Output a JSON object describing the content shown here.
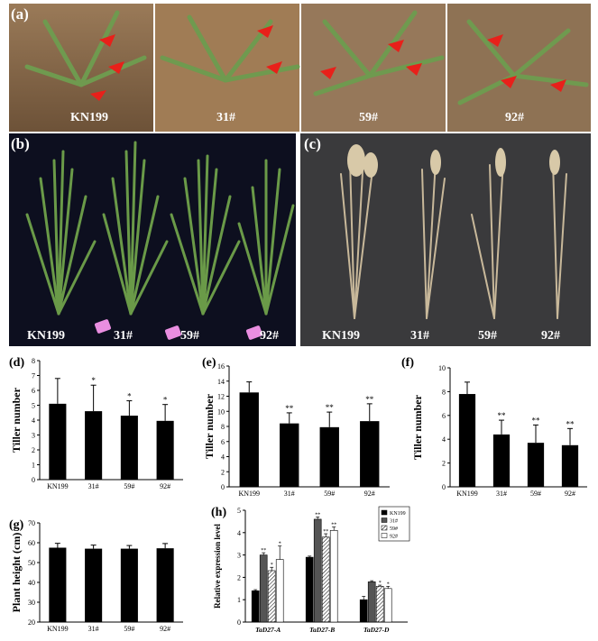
{
  "panels": {
    "a": {
      "letter": "(a)",
      "labels": [
        "KN199",
        "31#",
        "59#",
        "92#"
      ]
    },
    "b": {
      "letter": "(b)",
      "labels": [
        "KN199",
        "31#",
        "59#",
        "92#"
      ]
    },
    "c": {
      "letter": "(c)",
      "labels": [
        "KN199",
        "31#",
        "59#",
        "92#"
      ]
    }
  },
  "chart_data": [
    {
      "id": "d",
      "letter": "(d)",
      "type": "bar",
      "categories": [
        "KN199",
        "31#",
        "59#",
        "92#"
      ],
      "values": [
        5.1,
        4.6,
        4.3,
        3.95
      ],
      "errors": [
        1.7,
        1.75,
        1.0,
        1.1
      ],
      "sig": [
        "",
        "*",
        "*",
        "*"
      ],
      "ylabel": "Tiller number",
      "ylim": [
        0,
        8
      ],
      "yticks": [
        0,
        1,
        2,
        3,
        4,
        5,
        6,
        7,
        8
      ]
    },
    {
      "id": "e",
      "letter": "(e)",
      "type": "bar",
      "categories": [
        "KN199",
        "31#",
        "59#",
        "92#"
      ],
      "values": [
        12.5,
        8.4,
        7.9,
        8.7
      ],
      "errors": [
        1.4,
        1.4,
        2.0,
        2.3
      ],
      "sig": [
        "",
        "**",
        "**",
        "**"
      ],
      "ylabel": "Tiller number",
      "ylim": [
        0,
        16
      ],
      "yticks": [
        0,
        2,
        4,
        6,
        8,
        10,
        12,
        14,
        16
      ]
    },
    {
      "id": "f",
      "letter": "(f)",
      "type": "bar",
      "categories": [
        "KN199",
        "31#",
        "59#",
        "92#"
      ],
      "values": [
        7.8,
        4.4,
        3.7,
        3.5
      ],
      "errors": [
        1.0,
        1.2,
        1.5,
        1.4
      ],
      "sig": [
        "",
        "**",
        "**",
        "**"
      ],
      "ylabel": "Tiller number",
      "ylim": [
        0,
        10
      ],
      "yticks": [
        0,
        2,
        4,
        6,
        8,
        10
      ]
    },
    {
      "id": "g",
      "letter": "(g)",
      "type": "bar",
      "categories": [
        "KN199",
        "31#",
        "59#",
        "92#"
      ],
      "values": [
        57.5,
        57,
        57,
        57.2
      ],
      "errors": [
        2.2,
        1.8,
        1.6,
        2.4
      ],
      "sig": [
        "",
        "",
        "",
        ""
      ],
      "ylabel": "Plant height (cm)",
      "ylim": [
        20,
        70
      ],
      "yticks": [
        20,
        30,
        40,
        50,
        60,
        70
      ]
    },
    {
      "id": "h",
      "letter": "(h)",
      "type": "bar",
      "categories": [
        "TaD27-A",
        "TaD27-B",
        "TaD27-D"
      ],
      "ylabel": "Relative expression level",
      "ylim": [
        0,
        5
      ],
      "series": [
        {
          "name": "KN199",
          "values": [
            1.4,
            2.9,
            1.0
          ],
          "errors": [
            0.05,
            0.05,
            0.15
          ],
          "sig": [
            "",
            "",
            ""
          ]
        },
        {
          "name": "31#",
          "values": [
            3.0,
            4.6,
            1.8
          ],
          "errors": [
            0.1,
            0.1,
            0.05
          ],
          "sig": [
            "**",
            "**",
            ""
          ]
        },
        {
          "name": "59#",
          "values": [
            2.3,
            3.8,
            1.6
          ],
          "errors": [
            0.15,
            0.15,
            0.05
          ],
          "sig": [
            "*",
            "**",
            "*"
          ]
        },
        {
          "name": "92#",
          "values": [
            2.8,
            4.1,
            1.5
          ],
          "errors": [
            0.6,
            0.15,
            0.1
          ],
          "sig": [
            "*",
            "**",
            "*"
          ]
        }
      ]
    }
  ]
}
